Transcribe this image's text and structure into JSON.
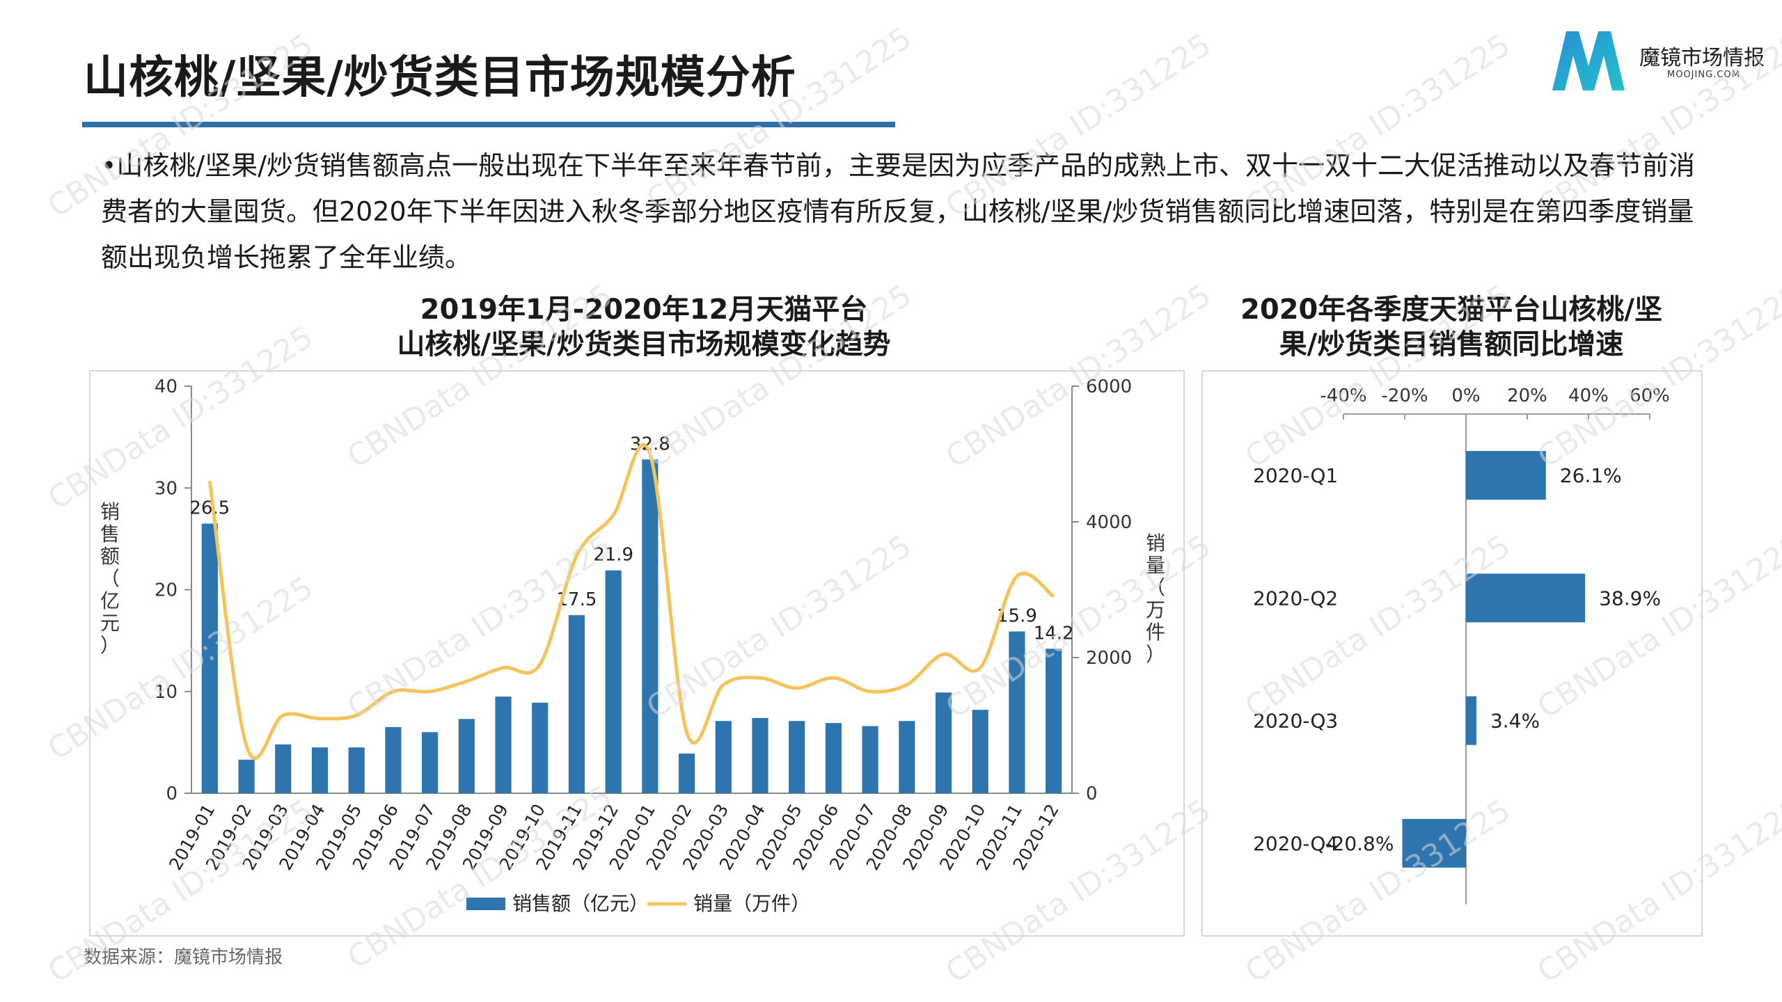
{
  "header": {
    "title": "山核桃/坚果/炒货类目市场规模分析",
    "logo_name": "魔镜市场情报",
    "logo_url": "MOOJING.COM"
  },
  "summary": "•山核桃/坚果/炒货销售额高点一般出现在下半年至来年春节前，主要是因为应季产品的成熟上市、双十一双十二大促活推动以及春节前消费者的大量囤货。但2020年下半年因进入秋冬季部分地区疫情有所反复，山核桃/坚果/炒货销售额同比增速回落，特别是在第四季度销量额出现负增长拖累了全年业绩。",
  "source": "数据来源：魔镜市场情报",
  "watermark": "CBNData ID:331225",
  "colors": {
    "bar": "#2e75b0",
    "line": "#f5c25c",
    "rule": "#2e6fa6"
  },
  "chart_data": [
    {
      "type": "bar",
      "title_line1": "2019年1月-2020年12月天猫平台",
      "title_line2": "山核桃/坚果/炒货类目市场规模变化趋势",
      "categories": [
        "2019-01",
        "2019-02",
        "2019-03",
        "2019-04",
        "2019-05",
        "2019-06",
        "2019-07",
        "2019-08",
        "2019-09",
        "2019-10",
        "2019-11",
        "2019-12",
        "2020-01",
        "2020-02",
        "2020-03",
        "2020-04",
        "2020-05",
        "2020-06",
        "2020-07",
        "2020-08",
        "2020-09",
        "2020-10",
        "2020-11",
        "2020-12"
      ],
      "series": [
        {
          "name": "销售额（亿元）",
          "type": "bar",
          "axis": "left",
          "values": [
            26.5,
            3.3,
            4.8,
            4.5,
            4.5,
            6.5,
            6.0,
            7.3,
            9.5,
            8.9,
            17.5,
            21.9,
            32.8,
            3.9,
            7.1,
            7.4,
            7.1,
            6.9,
            6.6,
            7.1,
            9.9,
            8.2,
            15.9,
            14.2
          ]
        },
        {
          "name": "销量（万件）",
          "type": "line",
          "axis": "right",
          "values": [
            4600,
            700,
            1150,
            1100,
            1150,
            1500,
            1500,
            1650,
            1850,
            1900,
            3500,
            4100,
            5000,
            900,
            1600,
            1700,
            1550,
            1700,
            1500,
            1600,
            2050,
            1850,
            3200,
            2900
          ]
        }
      ],
      "data_labels": {
        "2019-01": "26.5",
        "2019-11": "17.5",
        "2019-12": "21.9",
        "2020-01": "32.8",
        "2020-11": "15.9",
        "2020-12": "14.2"
      },
      "y_left": {
        "label": "销售额（亿元）",
        "ticks": [
          "0",
          "10",
          "20",
          "30",
          "40"
        ],
        "range": [
          0,
          40
        ]
      },
      "y_right": {
        "label": "销量（万件）",
        "ticks": [
          "0",
          "2000",
          "4000",
          "6000"
        ],
        "range": [
          0,
          6000
        ]
      },
      "legend": {
        "placement": "bottom",
        "items": [
          "销售额（亿元）",
          "销量（万件）"
        ]
      }
    },
    {
      "type": "bar",
      "orientation": "horizontal",
      "title_line1": "2020年各季度天猫平台山核桃/坚",
      "title_line2": "果/炒货类目销售额同比增速",
      "categories": [
        "2020-Q1",
        "2020-Q2",
        "2020-Q3",
        "2020-Q4"
      ],
      "values": [
        26.1,
        38.9,
        3.4,
        -20.8
      ],
      "value_labels": [
        "26.1%",
        "38.9%",
        "3.4%",
        "-20.8%"
      ],
      "x_ticks": [
        "-40%",
        "-20%",
        "0%",
        "20%",
        "40%",
        "60%"
      ],
      "x_range": [
        -40,
        60
      ]
    }
  ]
}
